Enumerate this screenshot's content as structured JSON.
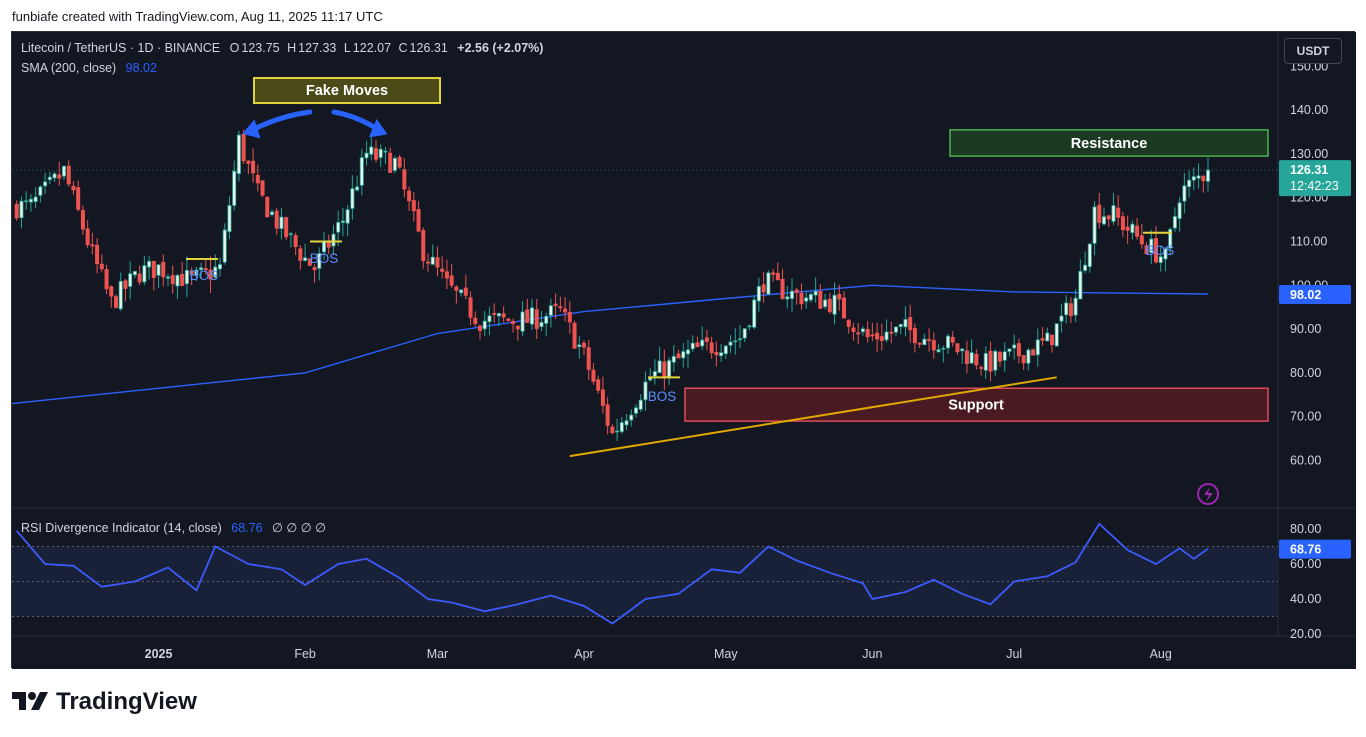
{
  "credit": "funbiafe created with TradingView.com, Aug 11, 2025 11:17 UTC",
  "footer_brand": "TradingView",
  "currency_button": "USDT",
  "legend": {
    "symbol": "Litecoin / TetherUS · 1D · BINANCE",
    "open_label": "O",
    "open": "123.75",
    "high_label": "H",
    "high": "127.33",
    "low_label": "L",
    "low": "122.07",
    "close_label": "C",
    "close": "126.31",
    "change": "+2.56 (+2.07%)",
    "sma_label": "SMA (200, close)",
    "sma_value": "98.02",
    "rsi_label": "RSI Divergence Indicator (14, close)",
    "rsi_value": "68.76",
    "rsi_extra": "∅ ∅ ∅ ∅"
  },
  "chart_data": {
    "type": "candlestick",
    "x_months": [
      "2025",
      "Feb",
      "Mar",
      "Apr",
      "May",
      "Jun",
      "Jul",
      "Aug"
    ],
    "y_ticks": [
      "150.00",
      "140.00",
      "130.00",
      "120.00",
      "110.00",
      "100.00",
      "90.00",
      "80.00",
      "70.00",
      "60.00"
    ],
    "ylim": [
      58,
      158
    ],
    "last_price": "126.31",
    "countdown": "12:42:23",
    "sma_label_value": "98.02",
    "price_path": [
      {
        "date": "2024-12-05",
        "close": 118
      },
      {
        "date": "2024-12-12",
        "close": 126
      },
      {
        "date": "2024-12-18",
        "close": 107
      },
      {
        "date": "2024-12-22",
        "close": 96
      },
      {
        "date": "2024-12-28",
        "close": 103
      },
      {
        "date": "2025-01-01",
        "close": 104
      },
      {
        "date": "2025-01-08",
        "close": 101
      },
      {
        "date": "2025-01-14",
        "close": 104
      },
      {
        "date": "2025-01-18",
        "close": 133
      },
      {
        "date": "2025-01-22",
        "close": 121
      },
      {
        "date": "2025-01-27",
        "close": 113
      },
      {
        "date": "2025-02-01",
        "close": 106
      },
      {
        "date": "2025-02-03",
        "close": 104
      },
      {
        "date": "2025-02-09",
        "close": 115
      },
      {
        "date": "2025-02-14",
        "close": 130
      },
      {
        "date": "2025-02-20",
        "close": 128
      },
      {
        "date": "2025-02-26",
        "close": 108
      },
      {
        "date": "2025-03-03",
        "close": 100
      },
      {
        "date": "2025-03-10",
        "close": 92
      },
      {
        "date": "2025-03-20",
        "close": 92
      },
      {
        "date": "2025-03-27",
        "close": 94
      },
      {
        "date": "2025-04-01",
        "close": 84
      },
      {
        "date": "2025-04-07",
        "close": 66
      },
      {
        "date": "2025-04-15",
        "close": 79
      },
      {
        "date": "2025-04-24",
        "close": 85
      },
      {
        "date": "2025-05-04",
        "close": 88
      },
      {
        "date": "2025-05-09",
        "close": 101
      },
      {
        "date": "2025-05-15",
        "close": 98
      },
      {
        "date": "2025-05-24",
        "close": 96
      },
      {
        "date": "2025-05-31",
        "close": 88
      },
      {
        "date": "2025-06-08",
        "close": 90
      },
      {
        "date": "2025-06-18",
        "close": 86
      },
      {
        "date": "2025-06-25",
        "close": 82
      },
      {
        "date": "2025-07-01",
        "close": 84
      },
      {
        "date": "2025-07-08",
        "close": 87
      },
      {
        "date": "2025-07-14",
        "close": 97
      },
      {
        "date": "2025-07-18",
        "close": 117
      },
      {
        "date": "2025-07-22",
        "close": 116
      },
      {
        "date": "2025-07-28",
        "close": 110
      },
      {
        "date": "2025-08-02",
        "close": 106
      },
      {
        "date": "2025-08-05",
        "close": 121
      },
      {
        "date": "2025-08-11",
        "close": 126.31
      }
    ],
    "sma": [
      {
        "date": "2024-12-01",
        "value": 73
      },
      {
        "date": "2025-02-01",
        "value": 80
      },
      {
        "date": "2025-03-01",
        "value": 89
      },
      {
        "date": "2025-04-01",
        "value": 94
      },
      {
        "date": "2025-05-01",
        "value": 97
      },
      {
        "date": "2025-06-01",
        "value": 100
      },
      {
        "date": "2025-07-01",
        "value": 98.5
      },
      {
        "date": "2025-08-11",
        "value": 98.02
      }
    ],
    "rsi": {
      "y_ticks": [
        "80.00",
        "60.00",
        "40.00",
        "20.00"
      ],
      "ylim": [
        18,
        88
      ],
      "last_value": "68.76",
      "bands": [
        30,
        50,
        70
      ],
      "points": [
        {
          "date": "2024-12-02",
          "value": 79
        },
        {
          "date": "2024-12-08",
          "value": 60
        },
        {
          "date": "2024-12-14",
          "value": 59
        },
        {
          "date": "2024-12-20",
          "value": 47
        },
        {
          "date": "2024-12-27",
          "value": 50
        },
        {
          "date": "2025-01-03",
          "value": 58
        },
        {
          "date": "2025-01-09",
          "value": 45
        },
        {
          "date": "2025-01-13",
          "value": 70
        },
        {
          "date": "2025-01-20",
          "value": 60
        },
        {
          "date": "2025-01-27",
          "value": 57
        },
        {
          "date": "2025-02-01",
          "value": 48
        },
        {
          "date": "2025-02-08",
          "value": 60
        },
        {
          "date": "2025-02-14",
          "value": 63
        },
        {
          "date": "2025-02-21",
          "value": 52
        },
        {
          "date": "2025-02-27",
          "value": 40
        },
        {
          "date": "2025-03-04",
          "value": 38
        },
        {
          "date": "2025-03-11",
          "value": 33
        },
        {
          "date": "2025-03-18",
          "value": 37
        },
        {
          "date": "2025-03-25",
          "value": 42
        },
        {
          "date": "2025-04-01",
          "value": 36
        },
        {
          "date": "2025-04-07",
          "value": 26
        },
        {
          "date": "2025-04-14",
          "value": 40
        },
        {
          "date": "2025-04-21",
          "value": 43
        },
        {
          "date": "2025-04-28",
          "value": 57
        },
        {
          "date": "2025-05-04",
          "value": 55
        },
        {
          "date": "2025-05-10",
          "value": 70
        },
        {
          "date": "2025-05-16",
          "value": 62
        },
        {
          "date": "2025-05-23",
          "value": 55
        },
        {
          "date": "2025-05-30",
          "value": 49
        },
        {
          "date": "2025-06-01",
          "value": 40
        },
        {
          "date": "2025-06-08",
          "value": 44
        },
        {
          "date": "2025-06-14",
          "value": 51
        },
        {
          "date": "2025-06-20",
          "value": 43
        },
        {
          "date": "2025-06-26",
          "value": 37
        },
        {
          "date": "2025-07-01",
          "value": 50
        },
        {
          "date": "2025-07-08",
          "value": 53
        },
        {
          "date": "2025-07-14",
          "value": 61
        },
        {
          "date": "2025-07-19",
          "value": 83
        },
        {
          "date": "2025-07-25",
          "value": 68
        },
        {
          "date": "2025-07-31",
          "value": 60
        },
        {
          "date": "2025-08-05",
          "value": 69
        },
        {
          "date": "2025-08-08",
          "value": 63
        },
        {
          "date": "2025-08-11",
          "value": 68.76
        }
      ]
    },
    "annotations": {
      "fake_moves": "Fake Moves",
      "resistance": "Resistance",
      "support": "Support",
      "bos": "BOS",
      "resistance_zone": [
        129.5,
        135.5
      ],
      "support_zone": [
        69,
        76.5
      ],
      "trendline": [
        {
          "date": "2025-03-29",
          "price": 61
        },
        {
          "date": "2025-07-10",
          "price": 79
        }
      ]
    }
  }
}
